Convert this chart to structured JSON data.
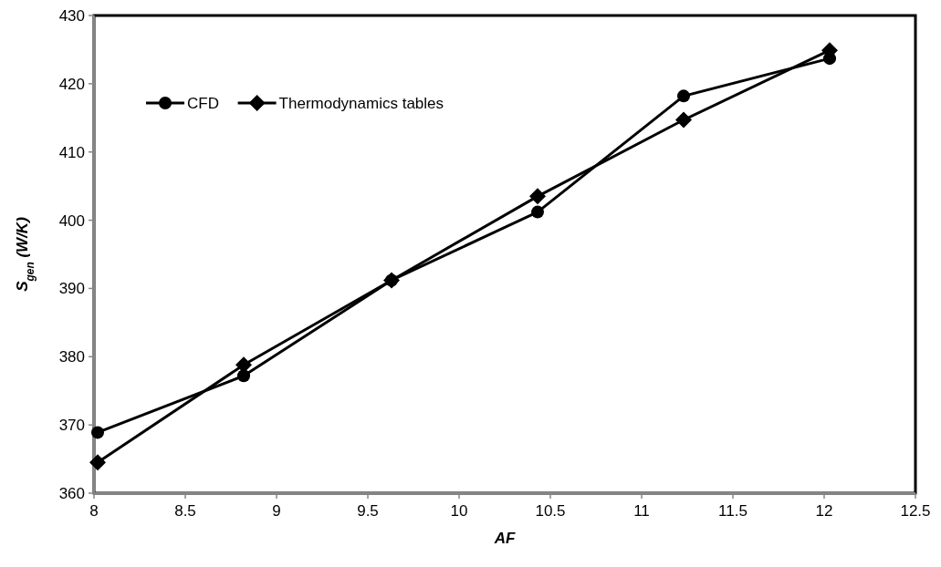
{
  "chart_data": {
    "type": "line",
    "xlabel": "AF",
    "ylabel": "S$_{gen}$ (W/K)",
    "x": [
      8.02,
      8.82,
      9.63,
      10.43,
      11.23,
      12.03
    ],
    "series": [
      {
        "name": "CFD",
        "color": "#000000",
        "marker": "circle",
        "values": [
          368.9,
          377.2,
          391.2,
          401.2,
          418.2,
          423.7
        ]
      },
      {
        "name": "Thermodynamics tables",
        "color": "#000000",
        "marker": "diamond",
        "values": [
          364.5,
          378.8,
          391.2,
          403.5,
          414.7,
          424.9
        ]
      }
    ],
    "xlim": [
      8,
      12.5
    ],
    "xticks": [
      8,
      8.5,
      9,
      9.5,
      10,
      10.5,
      11,
      11.5,
      12,
      12.5
    ],
    "ylim": [
      360,
      430
    ],
    "yticks": [
      360,
      370,
      380,
      390,
      400,
      410,
      420,
      430
    ],
    "grid": false,
    "legend": "top left",
    "line_style": "solid"
  }
}
